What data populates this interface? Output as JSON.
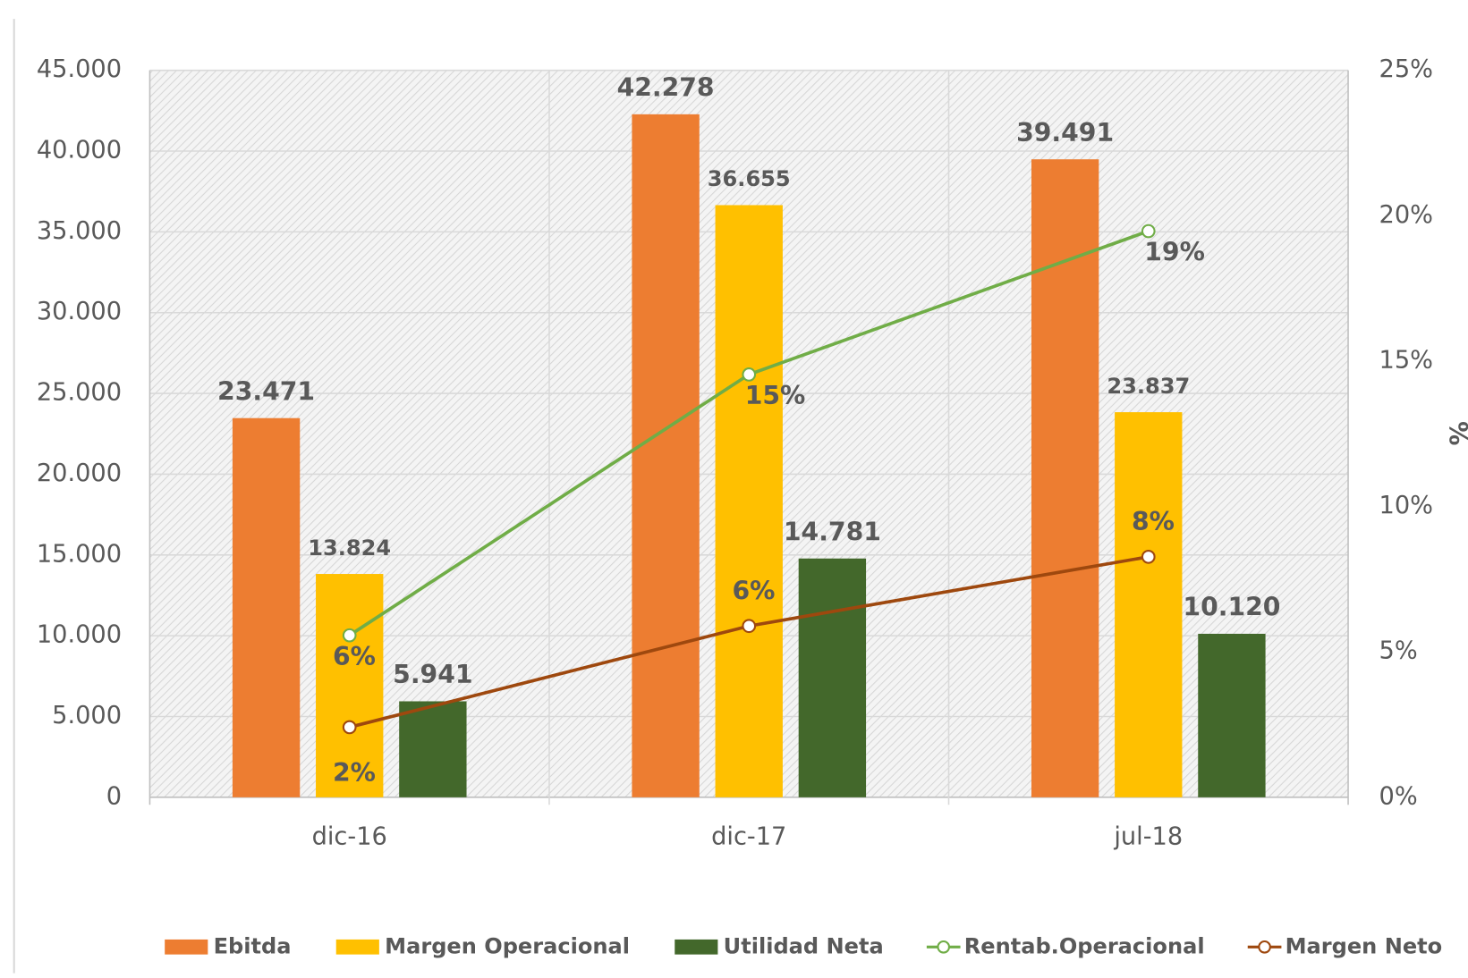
{
  "chart_data": {
    "type": "bar",
    "categories": [
      "dic-16",
      "dic-17",
      "jul-18"
    ],
    "series": [
      {
        "name": "Ebitda",
        "color": "#ed7d31",
        "values": [
          23471,
          42278,
          39491
        ],
        "value_labels": [
          "23.471",
          "42.278",
          "39.491"
        ]
      },
      {
        "name": "Margen Operacional",
        "color": "#ffc000",
        "values": [
          13824,
          36655,
          23837
        ],
        "value_labels": [
          "13.824",
          "36.655",
          "23.837"
        ]
      },
      {
        "name": "Utilidad Neta",
        "color": "#43682b",
        "values": [
          5941,
          14781,
          10120
        ],
        "value_labels": [
          "5.941",
          "14.781",
          "10.120"
        ]
      },
      {
        "name": "Rentab.Operacional",
        "type": "line",
        "axis": "y2",
        "color": "#70ad47",
        "values": [
          5.57,
          14.54,
          19.47
        ],
        "value_labels": [
          "6%",
          "15%",
          "19%"
        ]
      },
      {
        "name": "Margen Neto",
        "type": "line",
        "axis": "y2",
        "color": "#9e480e",
        "values": [
          2.41,
          5.89,
          8.27
        ],
        "value_labels": [
          "2%",
          "6%",
          "8%"
        ]
      }
    ],
    "ylim": [
      0,
      45000
    ],
    "yticks": [
      0,
      {
        "value": 5000,
        "label": "5.000"
      },
      {
        "value": 10000,
        "label": "10.000"
      },
      {
        "value": 15000,
        "label": "15.000"
      },
      {
        "value": 20000,
        "label": "20.000"
      },
      {
        "value": 25000,
        "label": "25.000"
      },
      {
        "value": 30000,
        "label": "30.000"
      },
      {
        "value": 35000,
        "label": "35.000"
      },
      {
        "value": 40000,
        "label": "40.000"
      },
      {
        "value": 45000,
        "label": "45.000"
      }
    ],
    "y2lim": [
      0,
      25
    ],
    "y2ticks": [
      {
        "value": 0,
        "label": "0%"
      },
      {
        "value": 5,
        "label": "5%"
      },
      {
        "value": 10,
        "label": "10%"
      },
      {
        "value": 15,
        "label": "15%"
      },
      {
        "value": 20,
        "label": "20%"
      },
      {
        "value": 25,
        "label": "25%"
      }
    ],
    "y2label": "%",
    "grid": true,
    "legend": "bottom"
  }
}
